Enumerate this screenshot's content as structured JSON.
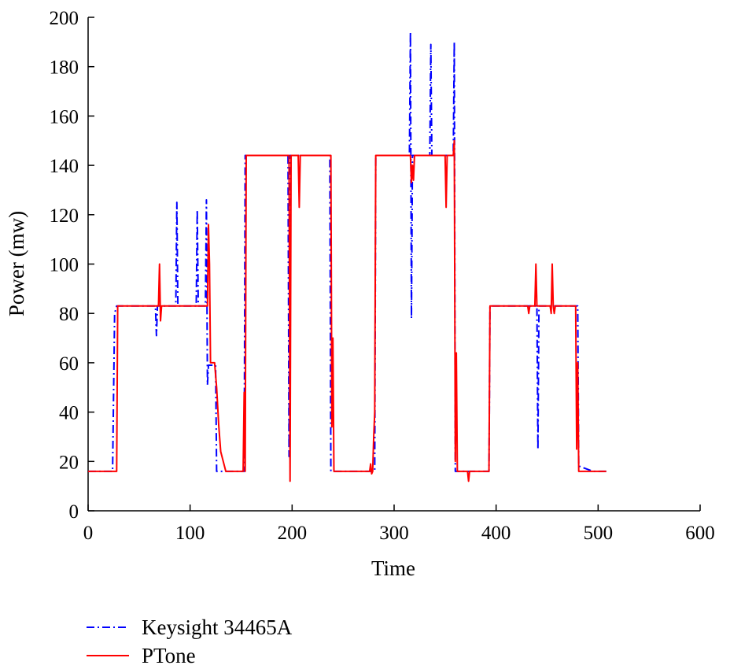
{
  "chart_data": {
    "type": "line",
    "title": "",
    "xlabel": "Time",
    "ylabel": "Power (mw)",
    "xlim": [
      0,
      600
    ],
    "ylim": [
      0,
      200
    ],
    "xticks": [
      0,
      100,
      200,
      300,
      400,
      500,
      600
    ],
    "yticks": [
      0,
      20,
      40,
      60,
      80,
      100,
      120,
      140,
      160,
      180,
      200
    ],
    "grid": false,
    "legend_position": "bottom-left, below plot",
    "series": [
      {
        "name": "Keysight 34465A",
        "color": "#0000ff",
        "style": "dash-dot",
        "x": [
          0,
          24,
          26,
          28,
          30,
          50,
          66,
          67,
          68,
          70,
          86,
          87,
          88,
          90,
          106,
          107,
          108,
          110,
          115,
          116,
          117,
          118,
          119,
          120,
          125,
          126,
          127,
          128,
          140,
          150,
          153,
          154,
          155,
          170,
          195,
          196,
          197,
          198,
          199,
          200,
          220,
          236,
          237,
          238,
          239,
          240,
          260,
          278,
          281,
          282,
          283,
          300,
          315,
          316,
          317,
          318,
          320,
          335,
          336,
          337,
          340,
          358,
          359,
          360,
          361,
          362,
          380,
          392,
          393,
          394,
          410,
          438,
          439,
          440,
          441,
          442,
          460,
          478,
          479,
          480,
          481,
          482,
          495,
          508
        ],
        "values": [
          16,
          16,
          80,
          83,
          83,
          83,
          83,
          71,
          83,
          83,
          83,
          125,
          83,
          83,
          83,
          122,
          83,
          83,
          83,
          126,
          51,
          59,
          59,
          59,
          59,
          16,
          16,
          16,
          16,
          16,
          16,
          144,
          144,
          144,
          144,
          144,
          22,
          144,
          144,
          144,
          144,
          144,
          144,
          16,
          16,
          16,
          16,
          16,
          16,
          144,
          144,
          144,
          144,
          194,
          78,
          144,
          144,
          144,
          189,
          144,
          144,
          144,
          190,
          16,
          16,
          16,
          16,
          16,
          16,
          83,
          83,
          83,
          83,
          83,
          25,
          83,
          83,
          83,
          83,
          83,
          18,
          18,
          16,
          16
        ]
      },
      {
        "name": "PTone",
        "color": "#ff0000",
        "style": "solid",
        "x": [
          0,
          28,
          29,
          30,
          69,
          70,
          71,
          72,
          73,
          74,
          90,
          117,
          118,
          119,
          120,
          121,
          122,
          124,
          126,
          128,
          130,
          135,
          150,
          152,
          153,
          154,
          155,
          156,
          157,
          158,
          180,
          197,
          198,
          199,
          200,
          201,
          206,
          207,
          208,
          220,
          238,
          239,
          240,
          241,
          260,
          276,
          277,
          278,
          279,
          280,
          281,
          282,
          300,
          316,
          317,
          318,
          319,
          320,
          321,
          350,
          351,
          352,
          358,
          359,
          360,
          361,
          362,
          365,
          372,
          373,
          374,
          390,
          393,
          394,
          395,
          431,
          432,
          433,
          438,
          439,
          440,
          441,
          442,
          453,
          454,
          455,
          456,
          457,
          458,
          460,
          478,
          479,
          480,
          481,
          482,
          508
        ],
        "values": [
          16,
          16,
          83,
          83,
          83,
          100,
          77,
          83,
          83,
          83,
          83,
          83,
          116,
          100,
          60,
          60,
          60,
          60,
          50,
          35,
          24,
          16,
          16,
          16,
          48,
          16,
          144,
          144,
          144,
          144,
          144,
          144,
          12,
          144,
          144,
          144,
          144,
          123,
          144,
          144,
          144,
          34,
          70,
          16,
          16,
          16,
          19,
          15,
          16,
          30,
          40,
          144,
          144,
          144,
          133,
          140,
          134,
          144,
          144,
          144,
          123,
          144,
          144,
          150,
          20,
          64,
          16,
          16,
          16,
          12,
          16,
          16,
          16,
          83,
          83,
          83,
          80,
          83,
          83,
          100,
          83,
          83,
          83,
          83,
          80,
          100,
          83,
          80,
          83,
          83,
          83,
          25,
          60,
          16,
          16,
          16
        ]
      }
    ]
  }
}
